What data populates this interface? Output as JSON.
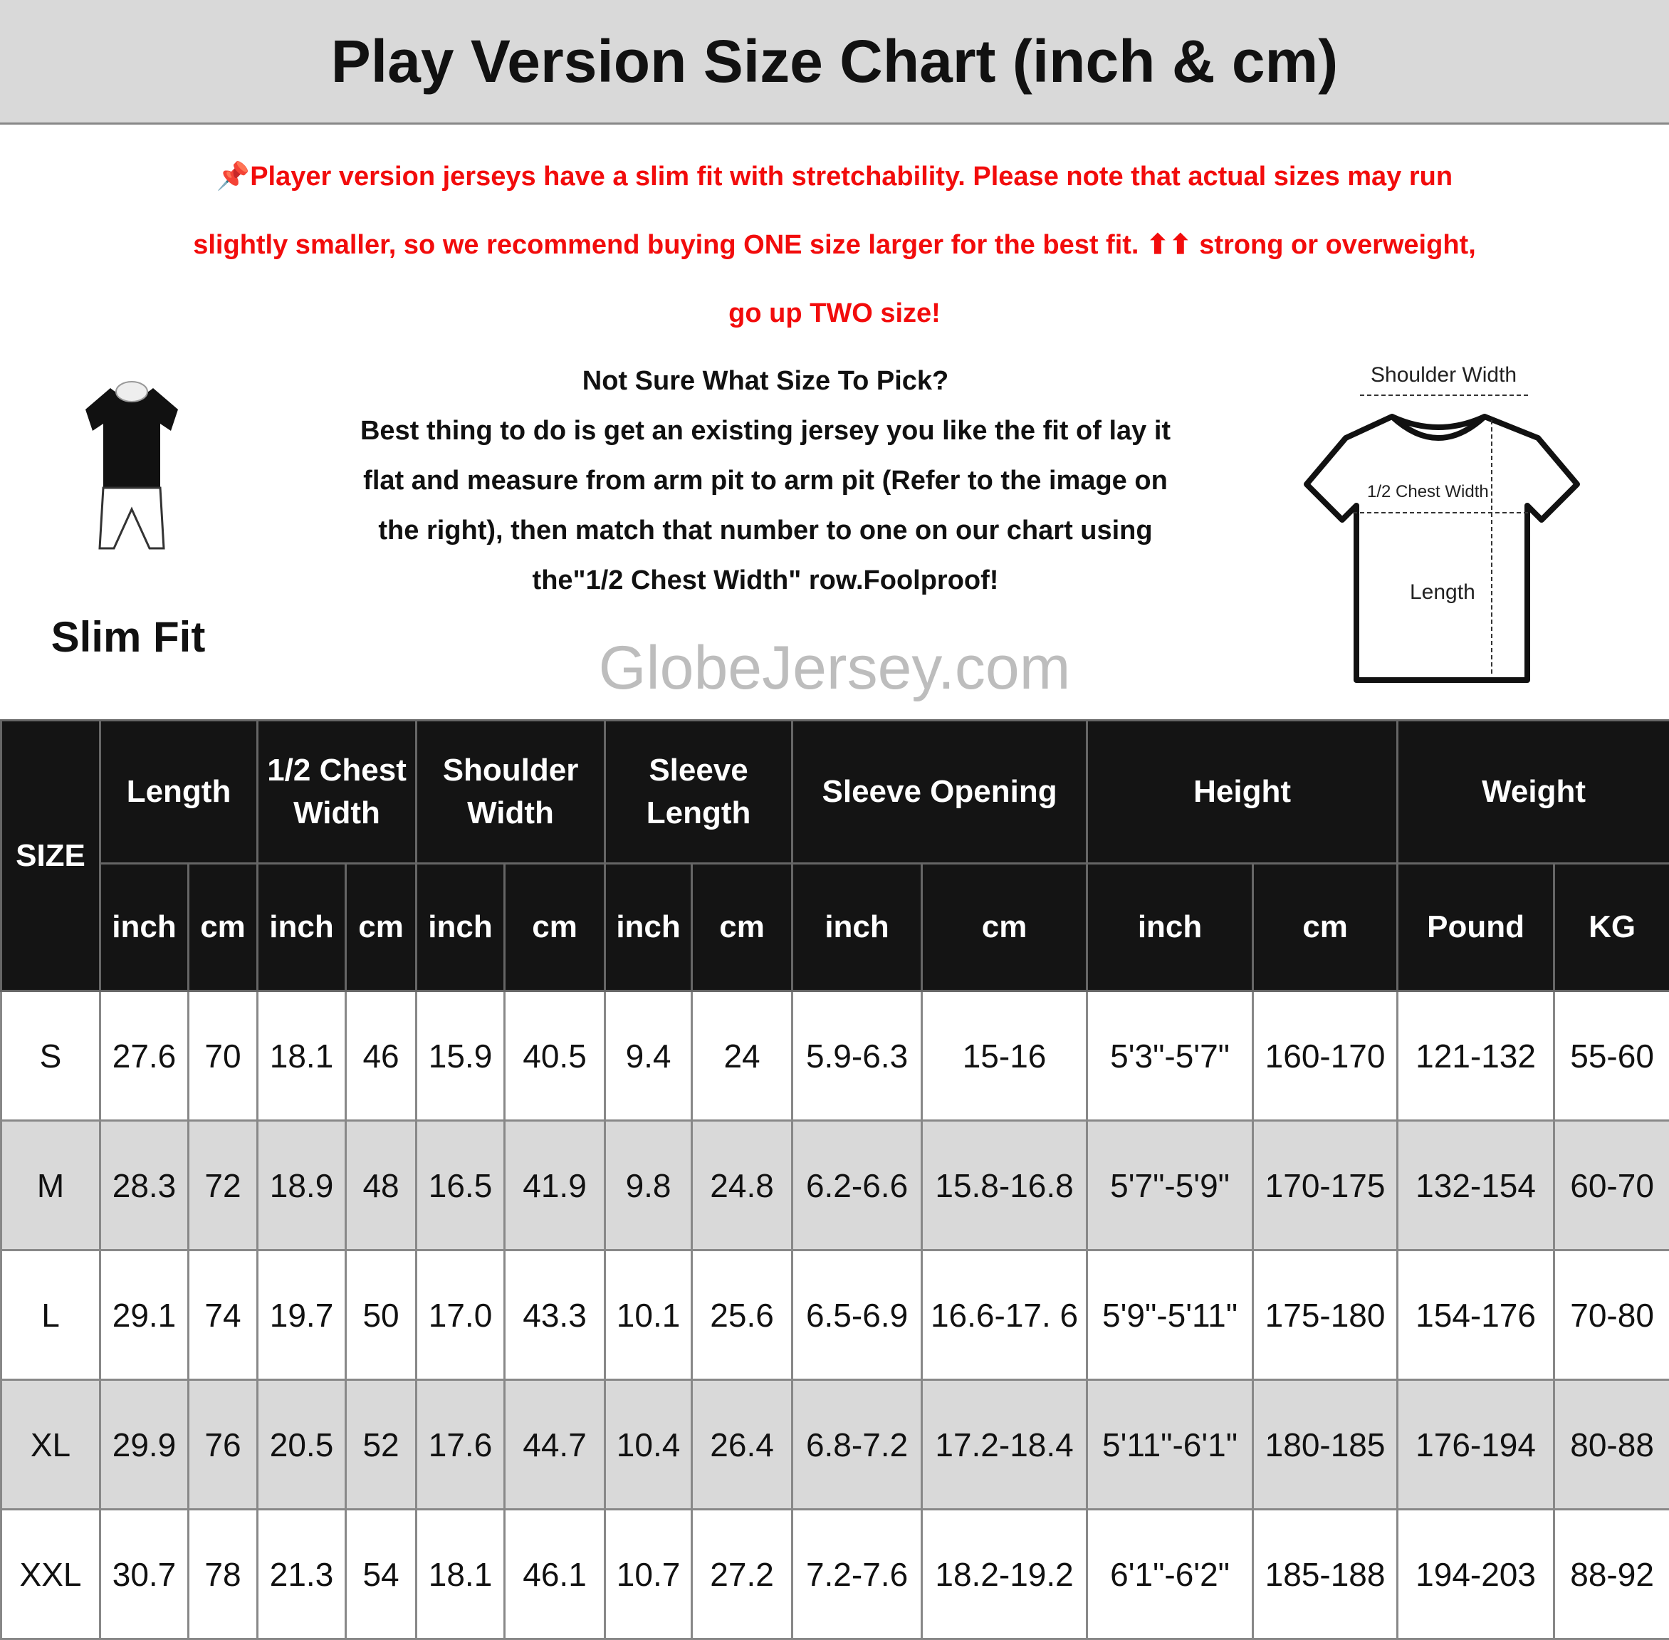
{
  "title": "Play Version Size Chart (inch & cm)",
  "notice": {
    "icon": "pushpin-icon",
    "lines": [
      "📌Player version jerseys have a slim fit with stretchability. Please note that actual sizes may run",
      "slightly smaller, so we recommend buying ONE size larger for the best fit. ⬆⬆ strong or overweight,",
      "go up TWO size!"
    ],
    "color": "#f20c0c"
  },
  "fit": {
    "label": "Slim Fit",
    "icon": "slim-fit-mannequin-icon"
  },
  "help": {
    "lines": [
      "Not Sure What Size To Pick?",
      "Best thing to do is get an existing jersey you like the fit of lay it",
      "flat and measure from arm pit to arm pit (Refer to the image on",
      "the right), then match that number to one on our chart using",
      "the\"1/2 Chest Width\" row.Foolproof!"
    ]
  },
  "diagram": {
    "shoulder": "Shoulder Width",
    "chest": "1/2 Chest Width",
    "length": "Length"
  },
  "watermark": "GlobeJersey.com",
  "table": {
    "size_header": "SIZE",
    "groups": [
      "Length",
      "1/2 Chest Width",
      "Shoulder Width",
      "Sleeve Length",
      "Sleeve Opening",
      "Height",
      "Weight"
    ],
    "units": [
      "inch",
      "cm",
      "inch",
      "cm",
      "inch",
      "cm",
      "inch",
      "cm",
      "inch",
      "cm",
      "inch",
      "cm",
      "Pound",
      "KG"
    ],
    "rows": [
      [
        "S",
        "27.6",
        "70",
        "18.1",
        "46",
        "15.9",
        "40.5",
        "9.4",
        "24",
        "5.9-6.3",
        "15-16",
        "5'3\"-5'7\"",
        "160-170",
        "121-132",
        "55-60"
      ],
      [
        "M",
        "28.3",
        "72",
        "18.9",
        "48",
        "16.5",
        "41.9",
        "9.8",
        "24.8",
        "6.2-6.6",
        "15.8-16.8",
        "5'7\"-5'9\"",
        "170-175",
        "132-154",
        "60-70"
      ],
      [
        "L",
        "29.1",
        "74",
        "19.7",
        "50",
        "17.0",
        "43.3",
        "10.1",
        "25.6",
        "6.5-6.9",
        "16.6-17. 6",
        "5'9\"-5'11\"",
        "175-180",
        "154-176",
        "70-80"
      ],
      [
        "XL",
        "29.9",
        "76",
        "20.5",
        "52",
        "17.6",
        "44.7",
        "10.4",
        "26.4",
        "6.8-7.2",
        "17.2-18.4",
        "5'11\"-6'1\"",
        "180-185",
        "176-194",
        "80-88"
      ],
      [
        "XXL",
        "30.7",
        "78",
        "21.3",
        "54",
        "18.1",
        "46.1",
        "10.7",
        "27.2",
        "7.2-7.6",
        "18.2-19.2",
        "6'1\"-6'2\"",
        "185-188",
        "194-203",
        "88-92"
      ]
    ]
  }
}
